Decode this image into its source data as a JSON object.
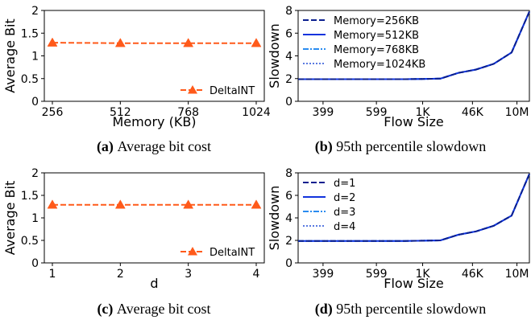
{
  "chart_data": [
    {
      "id": "a",
      "type": "line",
      "x_categories": [
        "256",
        "512",
        "768",
        "1024"
      ],
      "xlabel": "Memory (KB)",
      "ylabel": "Average Bit",
      "yticks": [
        "0",
        "0.5",
        "1",
        "1.5",
        "2"
      ],
      "ylim": [
        0,
        2
      ],
      "series": [
        {
          "name": "DeltaINT",
          "values": [
            1.29,
            1.28,
            1.28,
            1.28
          ],
          "color": "#ff5a1a",
          "marker": "triangle",
          "linestyle": "dashed"
        }
      ],
      "legend_position": "lower-right",
      "caption_label": "(a)",
      "caption_text": "Average bit cost"
    },
    {
      "id": "b",
      "type": "line",
      "x_tick_labels": [
        "399",
        "599",
        "1K",
        "46K",
        "10M"
      ],
      "xlabel": "Flow Size",
      "ylabel": "Slowdown",
      "yticks": [
        "0",
        "2",
        "4",
        "6",
        "8"
      ],
      "ylim": [
        0,
        8
      ],
      "x_index_range": [
        0,
        13
      ],
      "series": [
        {
          "name": "Memory=256KB",
          "color": "#0a1f8f",
          "linestyle": "dashed",
          "values": [
            1.95,
            1.95,
            1.95,
            1.95,
            1.95,
            1.95,
            1.95,
            1.97,
            2.0,
            2.5,
            2.8,
            3.3,
            4.3,
            7.9
          ]
        },
        {
          "name": "Memory=512KB",
          "color": "#1133dd",
          "linestyle": "solid",
          "values": [
            1.95,
            1.95,
            1.95,
            1.95,
            1.95,
            1.95,
            1.95,
            1.97,
            2.0,
            2.5,
            2.8,
            3.3,
            4.3,
            7.9
          ]
        },
        {
          "name": "Memory=768KB",
          "color": "#2a8cf0",
          "linestyle": "dashdot",
          "values": [
            1.95,
            1.95,
            1.95,
            1.95,
            1.95,
            1.95,
            1.95,
            1.97,
            2.0,
            2.5,
            2.8,
            3.3,
            4.3,
            7.9
          ]
        },
        {
          "name": "Memory=1024KB",
          "color": "#5a7ae0",
          "linestyle": "dotted",
          "values": [
            1.95,
            1.95,
            1.95,
            1.95,
            1.95,
            1.95,
            1.95,
            1.97,
            2.0,
            2.5,
            2.8,
            3.3,
            4.3,
            7.9
          ]
        }
      ],
      "legend_position": "upper-left",
      "caption_label": "(b)",
      "caption_text": "95th percentile slowdown"
    },
    {
      "id": "c",
      "type": "line",
      "x_categories": [
        "1",
        "2",
        "3",
        "4"
      ],
      "xlabel": "d",
      "ylabel": "Average Bit",
      "yticks": [
        "0",
        "0.5",
        "1",
        "1.5",
        "2"
      ],
      "ylim": [
        0,
        2
      ],
      "series": [
        {
          "name": "DeltaINT",
          "values": [
            1.29,
            1.29,
            1.29,
            1.29
          ],
          "color": "#ff5a1a",
          "marker": "triangle",
          "linestyle": "dashed"
        }
      ],
      "legend_position": "lower-right",
      "caption_label": "(c)",
      "caption_text": "Average bit cost"
    },
    {
      "id": "d",
      "type": "line",
      "x_tick_labels": [
        "399",
        "599",
        "1K",
        "46K",
        "10M"
      ],
      "xlabel": "Flow Size",
      "ylabel": "Slowdown",
      "yticks": [
        "0",
        "2",
        "4",
        "6",
        "8"
      ],
      "ylim": [
        0,
        8
      ],
      "x_index_range": [
        0,
        13
      ],
      "series": [
        {
          "name": "d=1",
          "color": "#0a1f8f",
          "linestyle": "dashed",
          "values": [
            1.95,
            1.95,
            1.95,
            1.95,
            1.95,
            1.95,
            1.95,
            1.97,
            2.0,
            2.5,
            2.8,
            3.3,
            4.2,
            7.9
          ]
        },
        {
          "name": "d=2",
          "color": "#1133dd",
          "linestyle": "solid",
          "values": [
            1.95,
            1.95,
            1.95,
            1.95,
            1.95,
            1.95,
            1.95,
            1.97,
            2.0,
            2.5,
            2.8,
            3.3,
            4.2,
            7.9
          ]
        },
        {
          "name": "d=3",
          "color": "#2a8cf0",
          "linestyle": "dashdot",
          "values": [
            1.95,
            1.95,
            1.95,
            1.95,
            1.95,
            1.95,
            1.95,
            1.97,
            2.0,
            2.5,
            2.8,
            3.3,
            4.2,
            7.9
          ]
        },
        {
          "name": "d=4",
          "color": "#5a7ae0",
          "linestyle": "dotted",
          "values": [
            1.95,
            1.95,
            1.95,
            1.95,
            1.95,
            1.95,
            1.95,
            1.97,
            2.0,
            2.5,
            2.8,
            3.3,
            4.2,
            7.9
          ]
        }
      ],
      "legend_position": "upper-left",
      "caption_label": "(d)",
      "caption_text": "95th percentile slowdown"
    }
  ]
}
